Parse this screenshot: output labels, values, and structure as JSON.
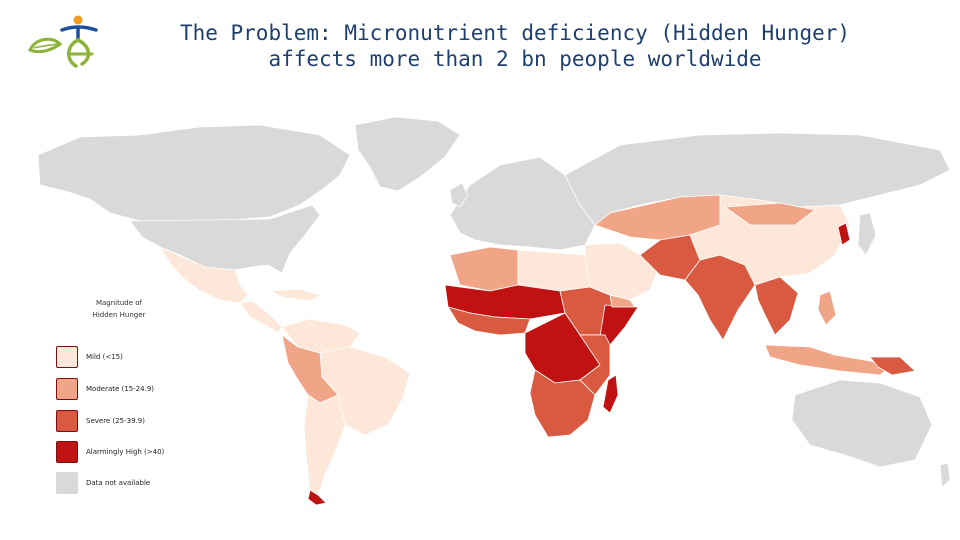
{
  "header": {
    "title_line1": "The Problem: Micronutrient deficiency (Hidden Hunger)",
    "title_line2": "affects more than 2 bn people worldwide"
  },
  "legend": {
    "title": "Magnitude of Hidden Hunger",
    "items": [
      {
        "label": "Mild (<15)",
        "color": "#fde7d8"
      },
      {
        "label": "Moderate (15-24.9)",
        "color": "#f0a587"
      },
      {
        "label": "Severe (25-39.9)",
        "color": "#d95a40"
      },
      {
        "label": "Alarmingly High (>40)",
        "color": "#c01212"
      },
      {
        "label": "Data not available",
        "color": "#d9d9d9"
      }
    ]
  },
  "colors": {
    "title": "#1f3f6e",
    "no_data": "#d9d9d9",
    "mild": "#fde7d8",
    "moderate": "#f0a587",
    "severe": "#d95a40",
    "alarming": "#c01212",
    "logo_green": "#8db33a",
    "logo_blue": "#1f4e9a",
    "logo_orange": "#f29c1f"
  }
}
